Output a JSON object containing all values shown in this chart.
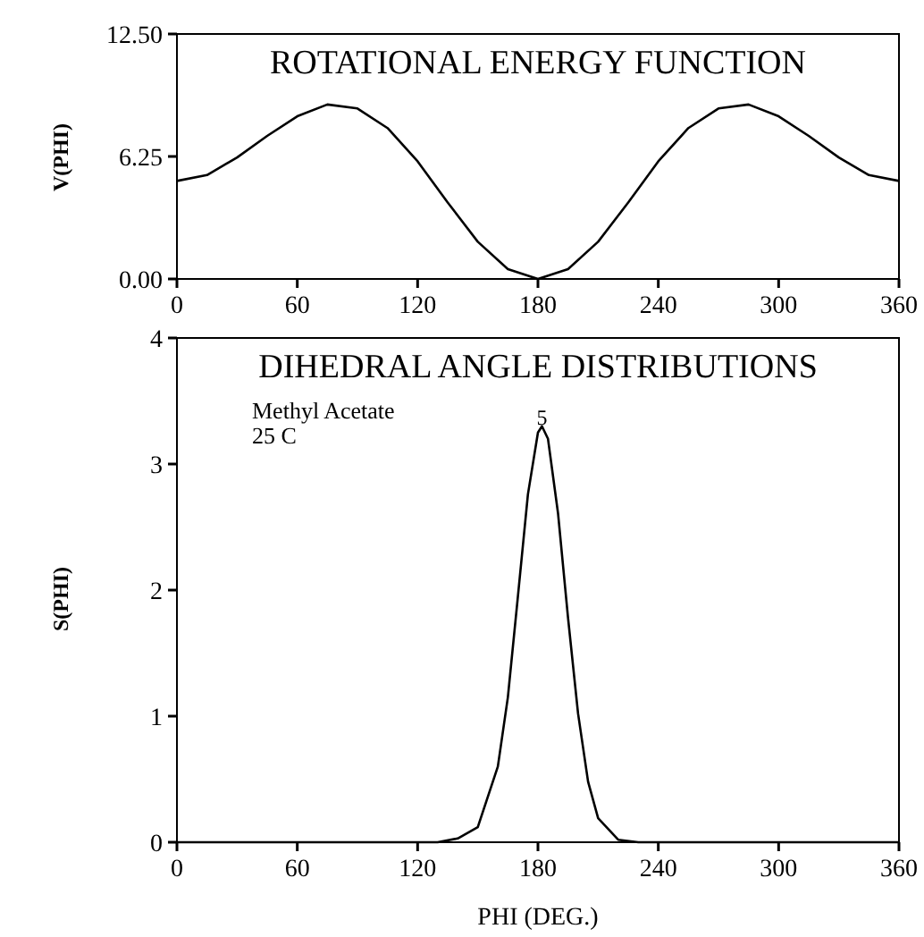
{
  "chart_data": [
    {
      "type": "line",
      "title": "ROTATIONAL ENERGY FUNCTION",
      "ylabel": "V(PHI)",
      "x": [
        0,
        15,
        30,
        45,
        60,
        75,
        90,
        105,
        120,
        135,
        150,
        165,
        180,
        195,
        210,
        225,
        240,
        255,
        270,
        285,
        300,
        315,
        330,
        345,
        360
      ],
      "series": [
        {
          "color": "#000000",
          "values": [
            5.0,
            5.3,
            6.2,
            7.3,
            8.3,
            8.9,
            8.7,
            7.7,
            6.0,
            3.9,
            1.9,
            0.5,
            0,
            0.5,
            1.9,
            3.9,
            6.0,
            7.7,
            8.7,
            8.9,
            8.3,
            7.3,
            6.2,
            5.3,
            5.0
          ]
        }
      ],
      "xlim": [
        0,
        360
      ],
      "xticks": [
        0,
        60,
        120,
        180,
        240,
        300,
        360
      ],
      "ylim": [
        0,
        12.5
      ],
      "yticks": [
        {
          "value": 0,
          "label": "0.00"
        },
        {
          "value": 6.25,
          "label": "6.25"
        },
        {
          "value": 12.5,
          "label": "12.50"
        }
      ],
      "grid": false,
      "marker": "none",
      "line_style": "solid"
    },
    {
      "type": "line",
      "title": "DIHEDRAL ANGLE DISTRIBUTIONS",
      "xlabel": "PHI (DEG.)",
      "ylabel": "S(PHI)",
      "annotations": [
        "Methyl Acetate",
        "25 C",
        {
          "text": "5",
          "x": 182,
          "y": 3.3
        }
      ],
      "x": [
        0,
        60,
        120,
        130,
        140,
        150,
        160,
        165,
        170,
        175,
        180,
        182,
        185,
        190,
        195,
        200,
        205,
        210,
        220,
        230,
        240,
        300,
        360
      ],
      "series": [
        {
          "color": "#000000",
          "values": [
            0,
            0,
            0,
            0,
            0.03,
            0.12,
            0.6,
            1.15,
            1.95,
            2.76,
            3.25,
            3.3,
            3.2,
            2.61,
            1.78,
            1.02,
            0.48,
            0.19,
            0.02,
            0,
            0,
            0,
            0
          ]
        }
      ],
      "xlim": [
        0,
        360
      ],
      "xticks": [
        0,
        60,
        120,
        180,
        240,
        300,
        360
      ],
      "ylim": [
        0,
        4
      ],
      "yticks": [
        0,
        1,
        2,
        3,
        4
      ],
      "grid": false,
      "marker": "none",
      "line_style": "solid"
    }
  ]
}
